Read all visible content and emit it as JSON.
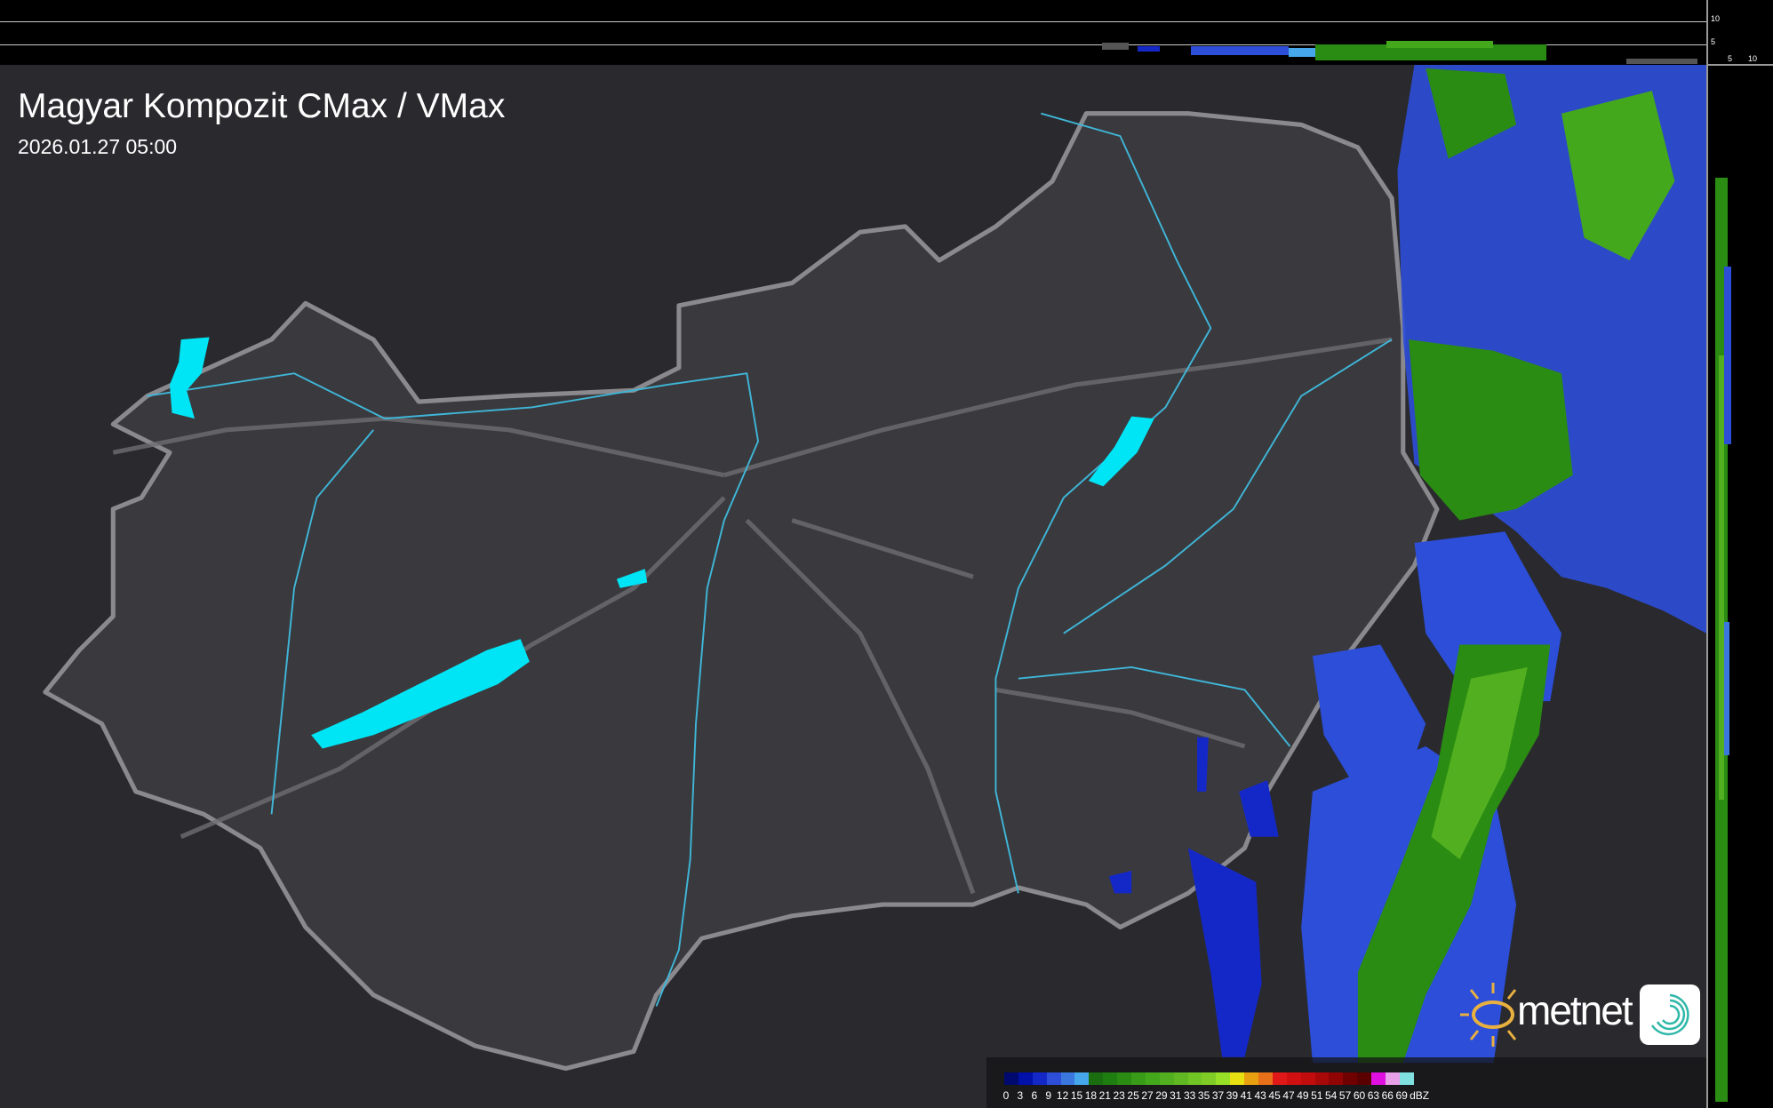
{
  "header": {
    "title": "Magyar Kompozit CMax / VMax",
    "timestamp": "2026.01.27 05:00"
  },
  "profile_axes": {
    "side_ticks": [
      "10",
      "5"
    ],
    "bottom_ticks": [
      "5",
      "10"
    ]
  },
  "legend": {
    "unit": "dBZ",
    "labels": [
      "0",
      "3",
      "6",
      "9",
      "12",
      "15",
      "18",
      "21",
      "23",
      "25",
      "27",
      "29",
      "31",
      "33",
      "35",
      "37",
      "39",
      "41",
      "43",
      "45",
      "47",
      "49",
      "51",
      "54",
      "57",
      "60",
      "63",
      "66",
      "69"
    ],
    "colors": [
      "#000a6e",
      "#0010a8",
      "#1428c8",
      "#2c4ed8",
      "#3a78e0",
      "#46a8ea",
      "#1a6e10",
      "#1e7e10",
      "#2a8c12",
      "#389c18",
      "#44a81c",
      "#52b020",
      "#60b822",
      "#70c424",
      "#80cc26",
      "#98e028",
      "#e8e010",
      "#e8a010",
      "#e87018",
      "#e01818",
      "#d01010",
      "#c00c0c",
      "#a80808",
      "#900404",
      "#700000",
      "#5a0000",
      "#e010e0",
      "#e8a0e8",
      "#80e0e0"
    ]
  },
  "logo": {
    "brand": "metnet"
  },
  "colors": {
    "background": "#2a2a2e",
    "country_fill": "#3a3a3e",
    "border": "#8a8a8e",
    "rivers": "#3fb6d8",
    "lakes": "#00e5f5"
  }
}
